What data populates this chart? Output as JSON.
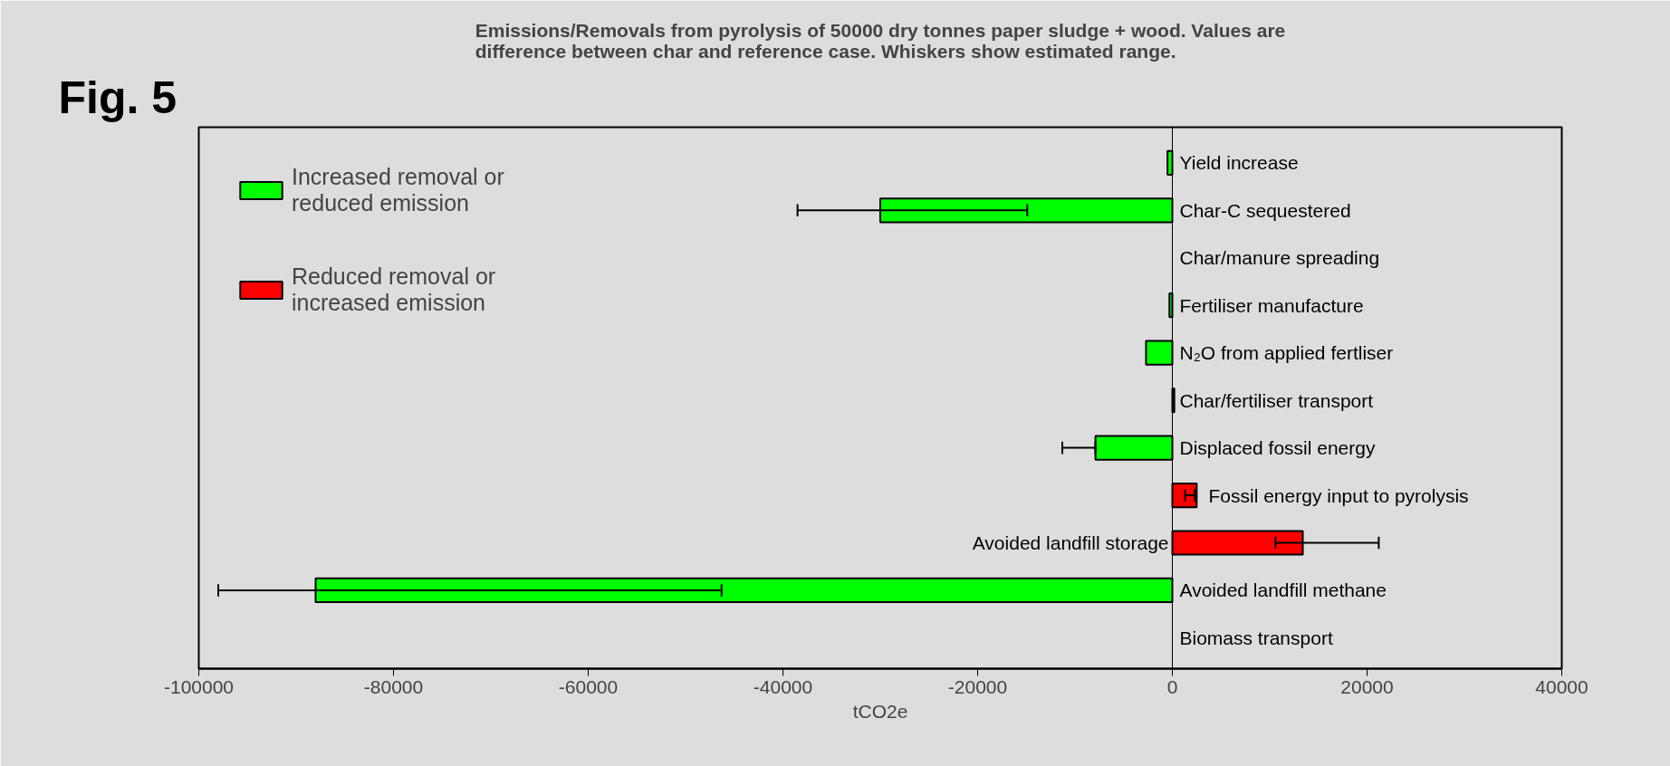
{
  "chart_data": {
    "type": "bar",
    "orientation": "horizontal",
    "title": "Emissions/Removals from pyrolysis of 50000 dry tonnes paper sludge + wood. Values are difference between char and reference case. Whiskers show estimated range.",
    "xlabel": "tCO2e",
    "annotations": [
      "Fig. 5"
    ],
    "categories": [
      "Yield increase",
      "Char-C sequestered",
      "Char/manure spreading",
      "Fertiliser manufacture",
      "N₂O from applied fertliser",
      "Char/fertiliser transport",
      "Displaced fossil energy",
      "Fossil energy input to pyrolysis",
      "Avoided landfill storage",
      "Avoided landfill methane",
      "Biomass transport"
    ],
    "series": [
      {
        "name": "Increased removal or reduced emission",
        "color": "#00ff00",
        "values": [
          -500,
          -30000,
          null,
          -300,
          -2700,
          null,
          -7900,
          null,
          null,
          -88000,
          null
        ],
        "errors": [
          null,
          [
            -38500,
            -14900
          ],
          null,
          null,
          null,
          null,
          [
            -11300,
            -7900
          ],
          null,
          null,
          [
            -98000,
            -46300
          ],
          null
        ]
      },
      {
        "name": "Reduced removal or increased emission",
        "color": "#ff0000",
        "values": [
          null,
          null,
          null,
          null,
          null,
          200,
          null,
          2500,
          13400,
          null,
          null
        ],
        "errors": [
          null,
          null,
          null,
          null,
          null,
          null,
          null,
          [
            1300,
            2300
          ],
          [
            10600,
            21200
          ],
          null,
          null
        ]
      }
    ],
    "xlim": [
      -100000,
      40000
    ],
    "xticks": [
      -100000,
      -80000,
      -60000,
      -40000,
      -20000,
      0,
      20000,
      40000
    ],
    "grid": false,
    "legend": "top left"
  }
}
